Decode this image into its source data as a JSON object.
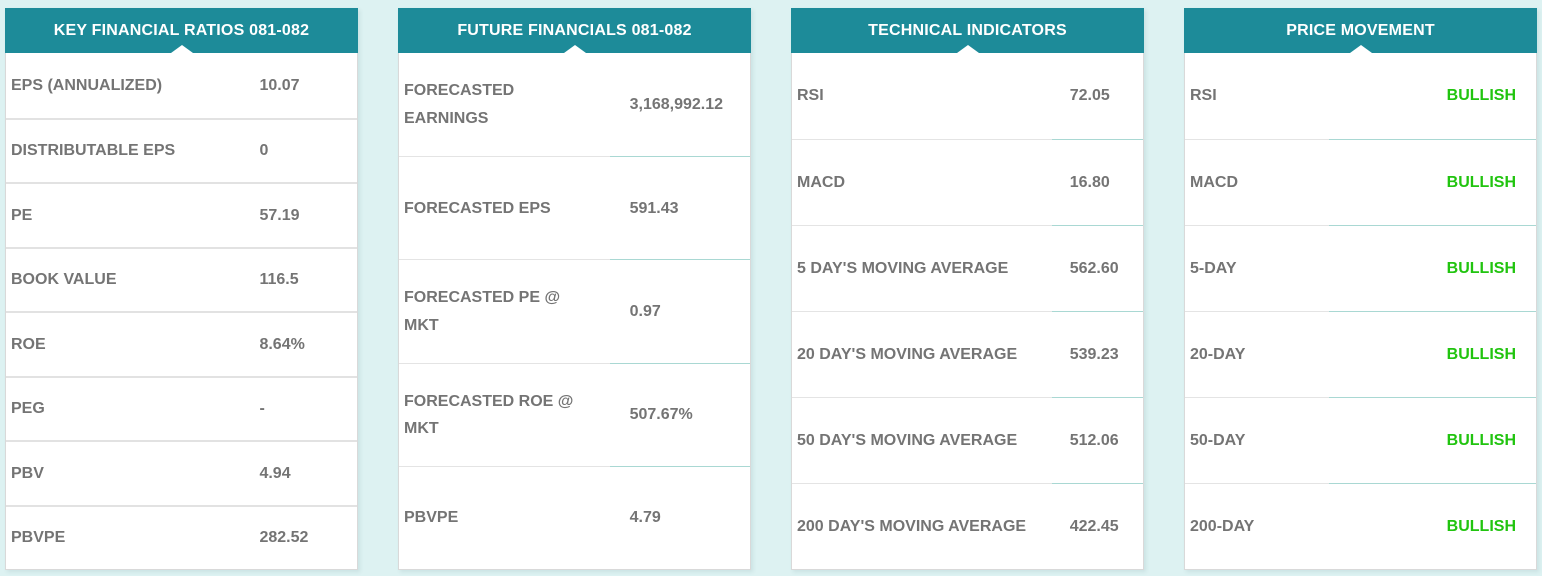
{
  "colors": {
    "header_teal": "#1d8b99",
    "page_background": "#ddf2f2",
    "bullish_green": "#21c40f",
    "text_gray": "#747474",
    "divider_gray": "#e2e2e2",
    "divider_teal": "#a9d8d3"
  },
  "panels": [
    {
      "name": "key-financial-ratios",
      "title": "KEY FINANCIAL RATIOS 081-082",
      "rows": [
        {
          "label": "EPS (ANNUALIZED)",
          "value": "10.07"
        },
        {
          "label": "DISTRIBUTABLE EPS",
          "value": "0"
        },
        {
          "label": "PE",
          "value": "57.19"
        },
        {
          "label": "BOOK VALUE",
          "value": "116.5"
        },
        {
          "label": "ROE",
          "value": "8.64%"
        },
        {
          "label": "PEG",
          "value": "-"
        },
        {
          "label": "PBV",
          "value": "4.94"
        },
        {
          "label": "PBVPE",
          "value": "282.52"
        }
      ]
    },
    {
      "name": "future-financials",
      "title": "FUTURE FINANCIALS 081-082",
      "rows": [
        {
          "label": "FORECASTED EARNINGS",
          "value": "3,168,992.12"
        },
        {
          "label": "FORECASTED EPS",
          "value": "591.43"
        },
        {
          "label": "FORECASTED PE @ MKT",
          "value": "0.97"
        },
        {
          "label": "FORECASTED ROE @ MKT",
          "value": "507.67%"
        },
        {
          "label": "PBVPE",
          "value": "4.79"
        }
      ]
    },
    {
      "name": "technical-indicators",
      "title": "TECHNICAL INDICATORS",
      "rows": [
        {
          "label": "RSI",
          "value": "72.05"
        },
        {
          "label": "MACD",
          "value": "16.80"
        },
        {
          "label": "5 DAY'S MOVING AVERAGE",
          "value": "562.60"
        },
        {
          "label": "20 DAY'S MOVING AVERAGE",
          "value": "539.23"
        },
        {
          "label": "50 DAY'S MOVING AVERAGE",
          "value": "512.06"
        },
        {
          "label": "200 DAY'S MOVING AVERAGE",
          "value": "422.45"
        }
      ]
    },
    {
      "name": "price-movement",
      "title": "PRICE MOVEMENT",
      "rows": [
        {
          "label": "RSI",
          "value": "BULLISH"
        },
        {
          "label": "MACD",
          "value": "BULLISH"
        },
        {
          "label": "5-DAY",
          "value": "BULLISH"
        },
        {
          "label": "20-DAY",
          "value": "BULLISH"
        },
        {
          "label": "50-DAY",
          "value": "BULLISH"
        },
        {
          "label": "200-DAY",
          "value": "BULLISH"
        }
      ]
    }
  ]
}
